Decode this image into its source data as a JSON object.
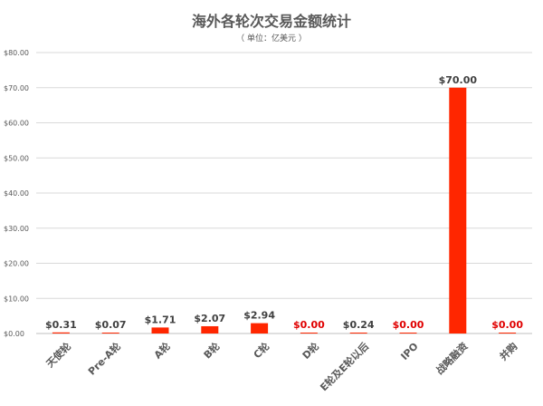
{
  "chart_data": {
    "type": "bar",
    "title": "海外各轮次交易金额统计",
    "subtitle": "（ 单位：亿美元 ）",
    "categories": [
      "天使轮",
      "Pre-A轮",
      "A轮",
      "B轮",
      "C轮",
      "D轮",
      "E轮及E轮以后",
      "IPO",
      "战略融资",
      "并购"
    ],
    "values": [
      0.31,
      0.07,
      1.71,
      2.07,
      2.94,
      0.0,
      0.24,
      0.0,
      70.0,
      0.0
    ],
    "data_labels": [
      "$0.31",
      "$0.07",
      "$1.71",
      "$2.07",
      "$2.94",
      "$0.00",
      "$0.24",
      "$0.00",
      "$70.00",
      "$0.00"
    ],
    "yticks": [
      "$0.00",
      "$10.00",
      "$20.00",
      "$30.00",
      "$40.00",
      "$50.00",
      "$60.00",
      "$70.00",
      "$80.00"
    ],
    "ylim": [
      0,
      80
    ],
    "grid": true,
    "colors": {
      "bar": "#ff2600",
      "zero_label": "#e00000",
      "label": "#404040",
      "grid": "#d9d9d9",
      "axis": "#bfbfbf"
    }
  }
}
